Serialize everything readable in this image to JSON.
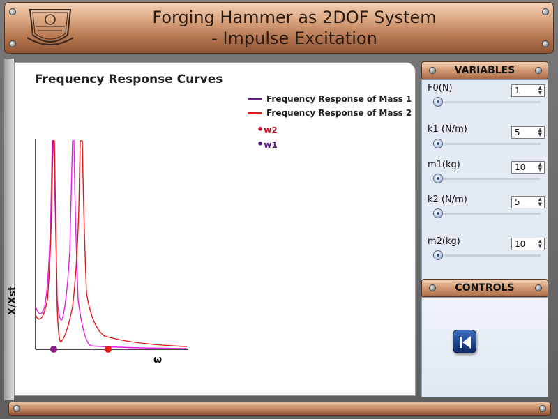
{
  "header": {
    "title_line1": "Forging Hammer as 2DOF System",
    "title_line2": "- Impulse Excitation"
  },
  "plot": {
    "title": "Frequency Response Curves",
    "legend": [
      {
        "label": "Frequency Response of Mass 1",
        "color": "#6a1b8a"
      },
      {
        "label": "Frequency Response of Mass 2",
        "color": "#e01818"
      }
    ],
    "markers": [
      {
        "label": "w2",
        "color": "#c0102a"
      },
      {
        "label": "w1",
        "color": "#5a1a7a"
      }
    ],
    "ylabel": "X/Xst",
    "xlabel": "ω",
    "colors": {
      "mass1": "#e020e0",
      "mass2": "#e01818",
      "w1_dot": "#8a1a8a",
      "w2_dot": "#e81c1c"
    }
  },
  "variables": {
    "header": "VARIABLES",
    "items": [
      {
        "label": "F0(N)",
        "value": "1"
      },
      {
        "label": "k1 (N/m)",
        "value": "5"
      },
      {
        "label": "m1(kg)",
        "value": "10"
      },
      {
        "label": "k2 (N/m)",
        "value": "5"
      },
      {
        "label": "m2(kg)",
        "value": "10"
      }
    ]
  },
  "controls": {
    "header": "CONTROLS",
    "play_icon": "step-back-icon"
  }
}
